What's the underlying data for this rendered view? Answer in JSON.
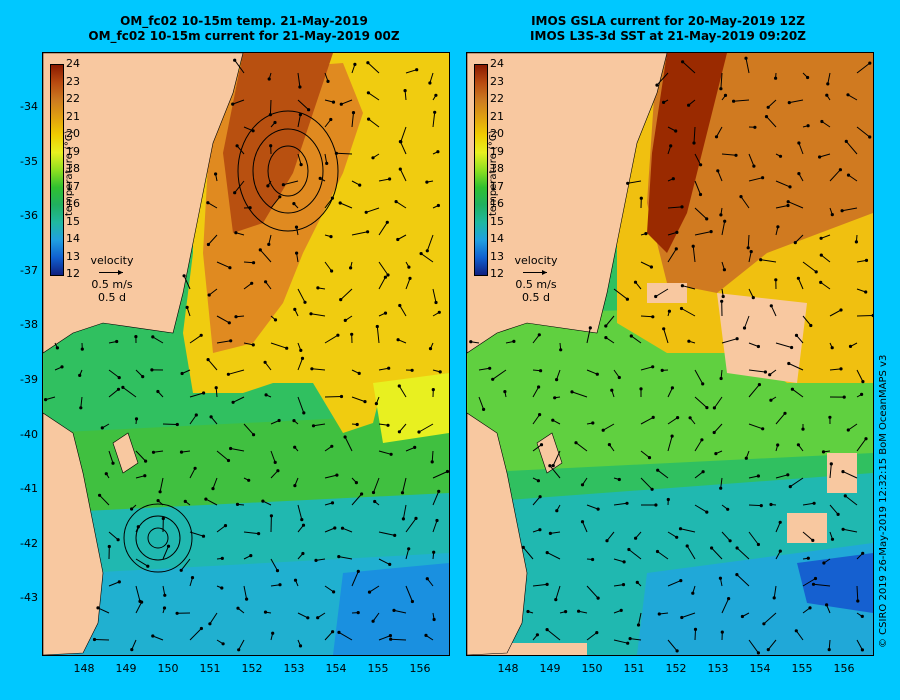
{
  "left_panel": {
    "title_line1": "OM_fc02 10-15m temp. 21-May-2019",
    "title_line2": "OM_fc02 10-15m current for 21-May-2019 00Z"
  },
  "right_panel": {
    "title_line1": "IMOS GSLA current for 20-May-2019 12Z",
    "title_line2": "IMOS L3S-3d SST at 21-May-2019 09:20Z"
  },
  "colorbar": {
    "label": "temperature (°C)",
    "ticks": [
      "24",
      "23",
      "22",
      "21",
      "20",
      "19",
      "18",
      "17",
      "16",
      "15",
      "14",
      "13",
      "12"
    ],
    "colors": [
      "#8a1a00",
      "#b84a10",
      "#cc7a20",
      "#e0a010",
      "#f0cc00",
      "#e8f020",
      "#90e020",
      "#30c030",
      "#20b060",
      "#20b8a0",
      "#20a0e0",
      "#1060d0",
      "#102080"
    ]
  },
  "velocity_key": {
    "label": "velocity",
    "speed": "0.5 m/s",
    "duration": "0.5 d"
  },
  "axes": {
    "lat_labels": [
      "-34",
      "-35",
      "-36",
      "-37",
      "-38",
      "-39",
      "-40",
      "-41",
      "-42",
      "-43"
    ],
    "lon_labels": [
      "148",
      "149",
      "150",
      "151",
      "152",
      "153",
      "154",
      "155",
      "156"
    ]
  },
  "credit": "© CSIRO 2019   26-May-2019 12:32:15 BoM OceanMAPS v3"
}
